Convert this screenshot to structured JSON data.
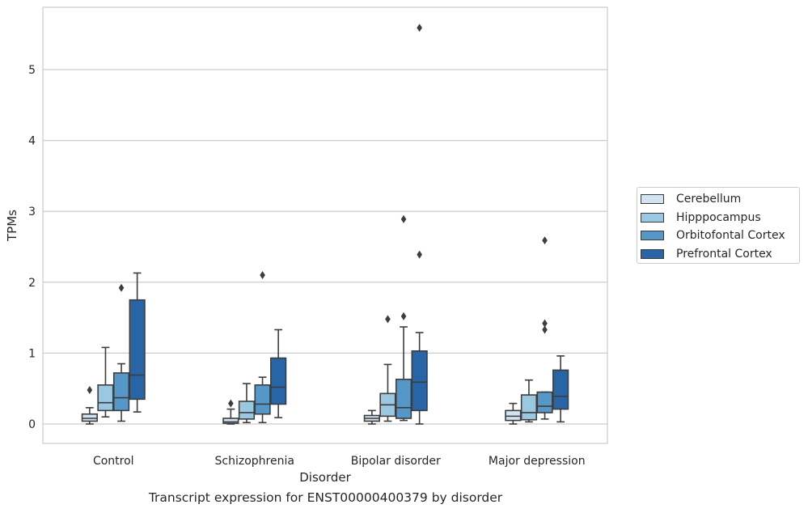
{
  "chart_data": {
    "type": "box",
    "xlabel": "Disorder",
    "ylabel": "TPMs",
    "caption": "Transcript expression for ENST00000400379 by disorder",
    "categories": [
      "Control",
      "Schizophrenia",
      "Bipolar disorder",
      "Major depression"
    ],
    "yticks": [
      0,
      1,
      2,
      3,
      4,
      5
    ],
    "ylim": [
      -0.27,
      5.9
    ],
    "grid": true,
    "legend_position": "right",
    "series": [
      {
        "name": "Cerebellum",
        "color": "#d1e2f1",
        "boxes": [
          {
            "whisker_low": 0.0,
            "q1": 0.04,
            "median": 0.08,
            "q3": 0.14,
            "whisker_high": 0.23,
            "outliers": [
              0.48
            ]
          },
          {
            "whisker_low": 0.0,
            "q1": 0.01,
            "median": 0.03,
            "q3": 0.08,
            "whisker_high": 0.21,
            "outliers": [
              0.29
            ]
          },
          {
            "whisker_low": 0.0,
            "q1": 0.04,
            "median": 0.08,
            "q3": 0.12,
            "whisker_high": 0.19,
            "outliers": []
          },
          {
            "whisker_low": 0.0,
            "q1": 0.05,
            "median": 0.11,
            "q3": 0.19,
            "whisker_high": 0.29,
            "outliers": []
          }
        ]
      },
      {
        "name": "Hipppocampus",
        "color": "#9ac8e0",
        "boxes": [
          {
            "whisker_low": 0.1,
            "q1": 0.19,
            "median": 0.3,
            "q3": 0.55,
            "whisker_high": 1.08,
            "outliers": []
          },
          {
            "whisker_low": 0.02,
            "q1": 0.07,
            "median": 0.16,
            "q3": 0.32,
            "whisker_high": 0.57,
            "outliers": []
          },
          {
            "whisker_low": 0.04,
            "q1": 0.11,
            "median": 0.27,
            "q3": 0.43,
            "whisker_high": 0.84,
            "outliers": [
              1.48
            ]
          },
          {
            "whisker_low": 0.03,
            "q1": 0.06,
            "median": 0.16,
            "q3": 0.41,
            "whisker_high": 0.62,
            "outliers": []
          }
        ]
      },
      {
        "name": "Orbitofontal Cortex",
        "color": "#5597c7",
        "boxes": [
          {
            "whisker_low": 0.04,
            "q1": 0.19,
            "median": 0.37,
            "q3": 0.72,
            "whisker_high": 0.85,
            "outliers": [
              1.92
            ]
          },
          {
            "whisker_low": 0.02,
            "q1": 0.14,
            "median": 0.28,
            "q3": 0.55,
            "whisker_high": 0.66,
            "outliers": [
              2.1
            ]
          },
          {
            "whisker_low": 0.05,
            "q1": 0.08,
            "median": 0.23,
            "q3": 0.63,
            "whisker_high": 1.37,
            "outliers": [
              1.52,
              2.89
            ]
          },
          {
            "whisker_low": 0.07,
            "q1": 0.16,
            "median": 0.25,
            "q3": 0.45,
            "whisker_high": 0.45,
            "outliers": [
              1.33,
              1.42,
              2.59
            ]
          }
        ]
      },
      {
        "name": "Prefrontal Cortex",
        "color": "#2865a6",
        "boxes": [
          {
            "whisker_low": 0.17,
            "q1": 0.35,
            "median": 0.69,
            "q3": 1.75,
            "whisker_high": 2.13,
            "outliers": []
          },
          {
            "whisker_low": 0.09,
            "q1": 0.28,
            "median": 0.52,
            "q3": 0.93,
            "whisker_high": 1.33,
            "outliers": []
          },
          {
            "whisker_low": 0.0,
            "q1": 0.19,
            "median": 0.59,
            "q3": 1.03,
            "whisker_high": 1.29,
            "outliers": [
              2.39,
              5.59
            ]
          },
          {
            "whisker_low": 0.03,
            "q1": 0.21,
            "median": 0.39,
            "q3": 0.76,
            "whisker_high": 0.96,
            "outliers": []
          }
        ]
      }
    ]
  }
}
